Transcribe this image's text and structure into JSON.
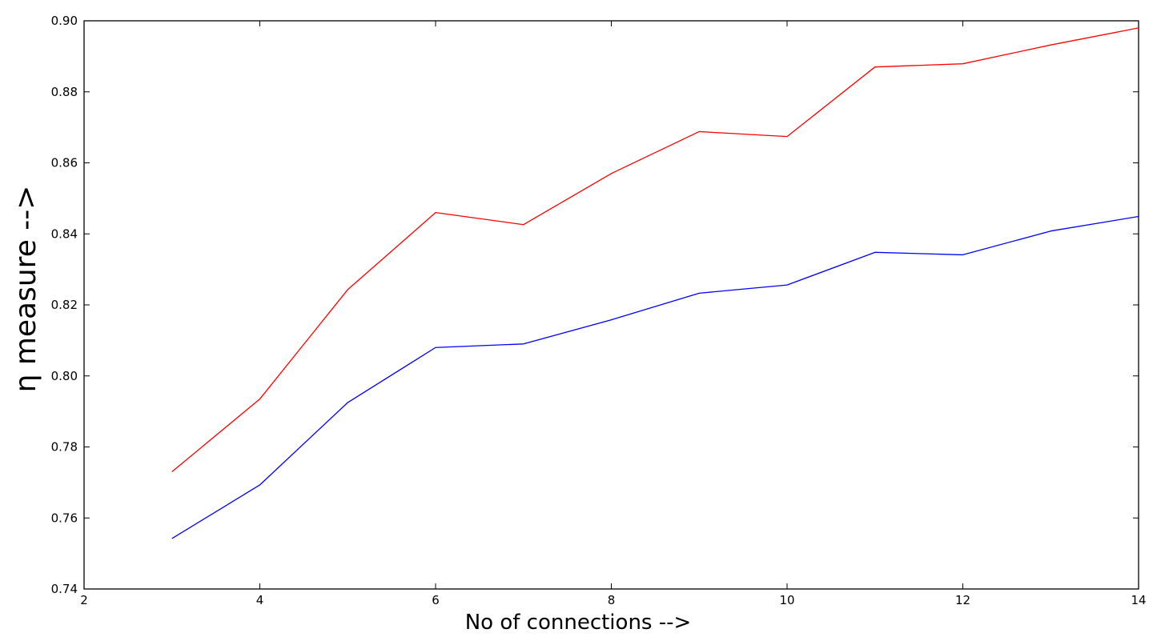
{
  "chart_data": {
    "type": "line",
    "title": "",
    "xlabel": "No of connections  -->",
    "ylabel": "η measure -->",
    "xlim": [
      2,
      14
    ],
    "ylim": [
      0.74,
      0.9
    ],
    "xticks": [
      2,
      4,
      6,
      8,
      10,
      12,
      14
    ],
    "yticks": [
      0.74,
      0.76,
      0.78,
      0.8,
      0.82,
      0.84,
      0.86,
      0.88,
      0.9
    ],
    "xtick_labels": [
      "2",
      "4",
      "6",
      "8",
      "10",
      "12",
      "14"
    ],
    "ytick_labels": [
      "0.74",
      "0.76",
      "0.78",
      "0.80",
      "0.82",
      "0.84",
      "0.86",
      "0.88",
      "0.90"
    ],
    "grid": false,
    "legend": "none",
    "x": [
      3,
      4,
      5,
      6,
      7,
      8,
      9,
      10,
      11,
      12,
      13,
      14
    ],
    "series": [
      {
        "color": "#ff0000",
        "values": [
          0.773,
          0.7935,
          0.8243,
          0.846,
          0.8426,
          0.857,
          0.8688,
          0.8674,
          0.887,
          0.8879,
          0.8932,
          0.898
        ]
      },
      {
        "color": "#0000ff",
        "values": [
          0.7542,
          0.7693,
          0.7925,
          0.808,
          0.809,
          0.8158,
          0.8233,
          0.8256,
          0.8348,
          0.8341,
          0.8408,
          0.8449
        ]
      }
    ]
  }
}
